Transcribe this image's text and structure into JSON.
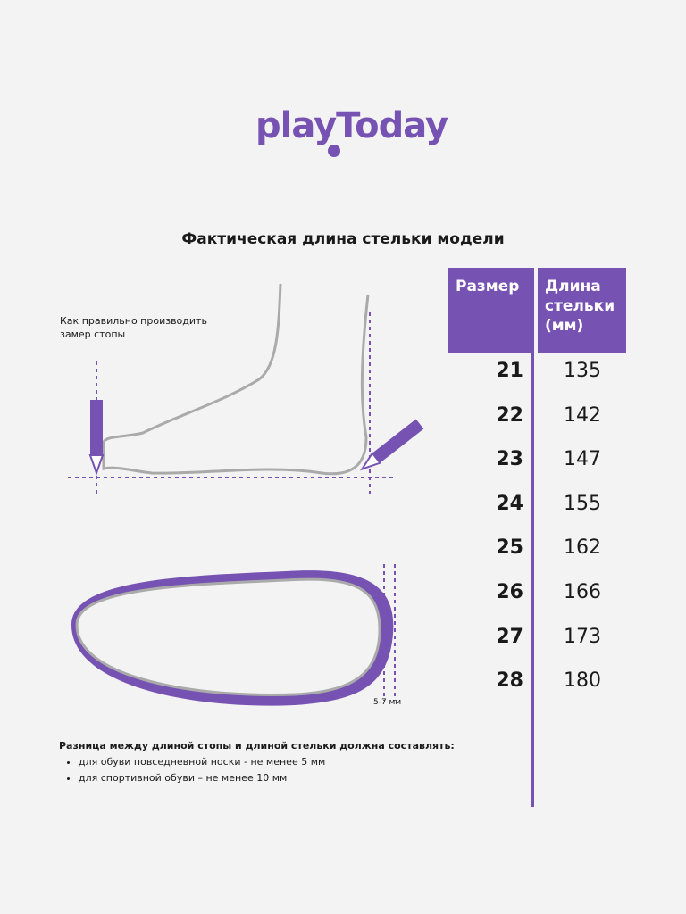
{
  "logo": {
    "text": "playToday",
    "color": "#7652b3"
  },
  "title": "Фактическая длина стельки модели",
  "table": {
    "headers": [
      "Размер",
      "Длина стельки (мм)"
    ],
    "rows": [
      {
        "size": "21",
        "length": "135"
      },
      {
        "size": "22",
        "length": "142"
      },
      {
        "size": "23",
        "length": "147"
      },
      {
        "size": "24",
        "length": "155"
      },
      {
        "size": "25",
        "length": "162"
      },
      {
        "size": "26",
        "length": "166"
      },
      {
        "size": "27",
        "length": "173"
      },
      {
        "size": "28",
        "length": "180"
      }
    ]
  },
  "measure_hint": "Как правильно производить замер стопы",
  "gap_label": "5-7 мм",
  "note": {
    "heading": "Разница между длиной стопы и длиной стельки должна составлять:",
    "items": [
      "для обуви повседневной носки -  не менее 5 мм",
      "для спортивной обуви – не менее 10 мм"
    ]
  },
  "accent_color": "#7652b3"
}
